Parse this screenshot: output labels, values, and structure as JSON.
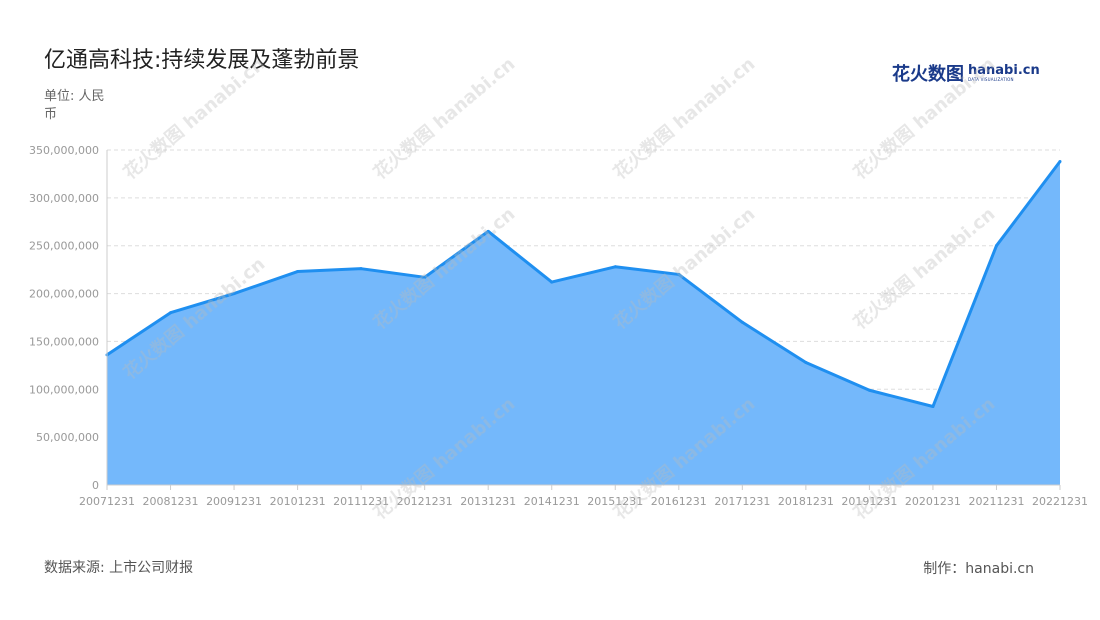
{
  "title": "亿通高科技:持续发展及蓬勃前景",
  "unit": "单位: 人民币",
  "logo": {
    "cn": "花火数图",
    "en": "hanabi.cn",
    "sub": "DATA VISUALIZATION"
  },
  "source": "数据来源: 上市公司财报",
  "maker": "制作：hanabi.cn",
  "colors": {
    "line": "#1f8ff0",
    "fill": "#74b8fb",
    "grid": "#dddddd",
    "axis": "#cccccc",
    "tick": "#999999"
  },
  "chart_data": {
    "type": "area",
    "title": "亿通高科技:持续发展及蓬勃前景",
    "x": [
      "20071231",
      "20081231",
      "20091231",
      "20101231",
      "20111231",
      "20121231",
      "20131231",
      "20141231",
      "20151231",
      "20161231",
      "20171231",
      "20181231",
      "20191231",
      "20201231",
      "20211231",
      "20221231"
    ],
    "series": [
      {
        "values": [
          136000000,
          180000000,
          200000000,
          223000000,
          226000000,
          217000000,
          265000000,
          212000000,
          228000000,
          220000000,
          170000000,
          128000000,
          99000000,
          82000000,
          250000000,
          338000000
        ]
      }
    ],
    "y_ticks": [
      "0",
      "50,000,000",
      "100,000,000",
      "150,000,000",
      "200,000,000",
      "250,000,000",
      "300,000,000",
      "350,000,000"
    ],
    "ylim": [
      0,
      350000000
    ],
    "grid": true
  }
}
